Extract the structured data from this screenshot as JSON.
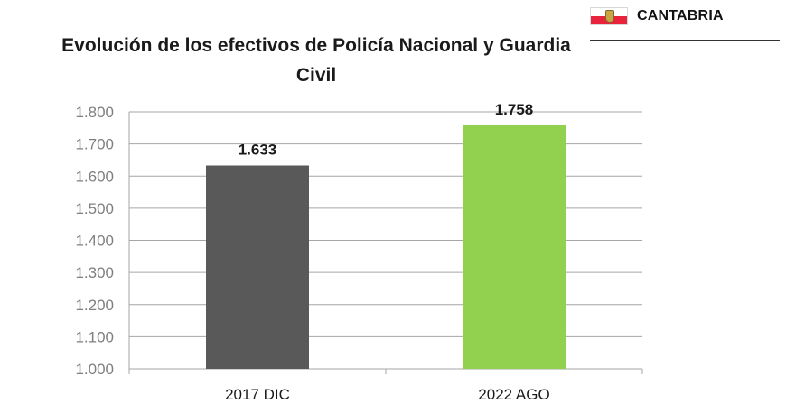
{
  "header": {
    "region_name": "CANTABRIA",
    "flag_icon": "cantabria-flag-icon",
    "flag_colors": {
      "top": "#ffffff",
      "bottom": "#e8233b",
      "shield": "#c9a641"
    }
  },
  "colors": {
    "bar_2017": "#595959",
    "bar_2022": "#92d050",
    "grid": "#a6a6a6",
    "tick_text": "#7f7f7f"
  },
  "chart_data": {
    "type": "bar",
    "title": "Evolución de los efectivos de Policía Nacional y Guardia Civil",
    "categories": [
      "2017 DIC",
      "2022 AGO"
    ],
    "values": [
      1633,
      1758
    ],
    "value_labels": [
      "1.633",
      "1.758"
    ],
    "xlabel": "",
    "ylabel": "",
    "ylim": [
      1000,
      1800
    ],
    "yticks": [
      1000,
      1100,
      1200,
      1300,
      1400,
      1500,
      1600,
      1700,
      1800
    ],
    "ytick_labels": [
      "1.000",
      "1.100",
      "1.200",
      "1.300",
      "1.400",
      "1.500",
      "1.600",
      "1.700",
      "1.800"
    ],
    "grid": true,
    "legend": "none"
  }
}
